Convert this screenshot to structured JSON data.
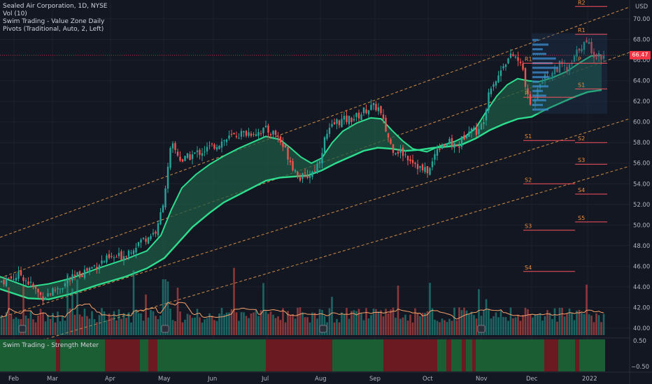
{
  "legend": {
    "title": "Sealed Air Corporation, 1D, NYSE",
    "vol": "Vol (10)",
    "indicator": "Swim Trading - Value Zone Daily",
    "pivots": "Pivots (Traditional, Auto, 2, Left)"
  },
  "sub_pane": {
    "label": "Swim Trading - Strength Meter",
    "ticks": [
      "0.50",
      "−0.50"
    ]
  },
  "axis": {
    "currency": "USD",
    "y_ticks": [
      "70.00",
      "68.00",
      "66.00",
      "64.00",
      "62.00",
      "60.00",
      "58.00",
      "56.00",
      "54.00",
      "52.00",
      "50.00",
      "48.00",
      "46.00",
      "44.00",
      "42.00",
      "40.00"
    ],
    "x_ticks": [
      "Feb",
      "Mar",
      "Apr",
      "May",
      "Jun",
      "Jul",
      "Aug",
      "Sep",
      "Oct",
      "Nov",
      "Dec",
      "2022"
    ]
  },
  "last_price": "66.47",
  "pivots_current": {
    "R2": "R2",
    "R1": "R1",
    "P": "P",
    "S1": "S1",
    "S2": "S2",
    "S3": "S3",
    "S4": "S4",
    "S5": "S5"
  },
  "pivots_prev": {
    "R1": "R1",
    "P": "P",
    "S1": "S1",
    "S2": "S2",
    "S3": "S3",
    "S4": "S4"
  },
  "colors": {
    "up": "#26a69a",
    "down": "#ef5350",
    "zone_line": "#2ede8f",
    "zone_fill": "#1e5a44",
    "channel": "#f0a04b",
    "pivot": "#f7525f",
    "pivot_text": "#f08c3a",
    "meter_green": "#1b5e33",
    "meter_red": "#6b1a22"
  },
  "chart_data": {
    "type": "candlestick",
    "ylim": [
      39,
      71
    ],
    "price_path": [
      [
        0,
        44.5
      ],
      [
        30,
        45.2
      ],
      [
        60,
        43
      ],
      [
        90,
        44.2
      ],
      [
        120,
        45.5
      ],
      [
        150,
        46.6
      ],
      [
        175,
        47
      ],
      [
        200,
        48.4
      ],
      [
        225,
        49.5
      ],
      [
        235,
        53
      ],
      [
        245,
        57.8
      ],
      [
        260,
        56.2
      ],
      [
        275,
        56.8
      ],
      [
        300,
        57.5
      ],
      [
        320,
        58.2
      ],
      [
        340,
        58.8
      ],
      [
        360,
        59
      ],
      [
        380,
        59.2
      ],
      [
        395,
        58.8
      ],
      [
        410,
        57
      ],
      [
        420,
        55.5
      ],
      [
        430,
        54.5
      ],
      [
        445,
        55
      ],
      [
        455,
        56
      ],
      [
        465,
        58.5
      ],
      [
        480,
        60
      ],
      [
        495,
        60.2
      ],
      [
        510,
        60.5
      ],
      [
        525,
        61.3
      ],
      [
        540,
        61.5
      ],
      [
        550,
        59.5
      ],
      [
        560,
        57.5
      ],
      [
        575,
        57
      ],
      [
        590,
        56.3
      ],
      [
        605,
        55.2
      ],
      [
        615,
        55.4
      ],
      [
        625,
        57.6
      ],
      [
        640,
        58
      ],
      [
        655,
        57.6
      ],
      [
        670,
        59.5
      ],
      [
        685,
        59
      ],
      [
        692,
        60.5
      ],
      [
        700,
        63.5
      ],
      [
        712,
        64.3
      ],
      [
        720,
        65.8
      ],
      [
        735,
        66.5
      ],
      [
        748,
        65
      ],
      [
        755,
        62
      ],
      [
        762,
        61.5
      ],
      [
        770,
        64
      ],
      [
        785,
        64.5
      ],
      [
        800,
        65.5
      ],
      [
        812,
        65
      ],
      [
        820,
        66
      ],
      [
        830,
        67.5
      ],
      [
        842,
        67.5
      ],
      [
        850,
        66.5
      ],
      [
        860,
        66.4
      ]
    ],
    "value_zone_fast": [
      [
        0,
        45
      ],
      [
        40,
        44
      ],
      [
        70,
        44.3
      ],
      [
        100,
        44.8
      ],
      [
        140,
        45.8
      ],
      [
        180,
        46.7
      ],
      [
        210,
        47.5
      ],
      [
        230,
        49
      ],
      [
        245,
        51.5
      ],
      [
        260,
        53.6
      ],
      [
        280,
        54.9
      ],
      [
        300,
        55.9
      ],
      [
        320,
        56.7
      ],
      [
        340,
        57.4
      ],
      [
        360,
        58
      ],
      [
        380,
        58.6
      ],
      [
        400,
        58.3
      ],
      [
        415,
        57.5
      ],
      [
        430,
        56.6
      ],
      [
        445,
        56
      ],
      [
        460,
        56.5
      ],
      [
        475,
        58
      ],
      [
        490,
        59.1
      ],
      [
        510,
        59.9
      ],
      [
        530,
        60.4
      ],
      [
        545,
        60.3
      ],
      [
        560,
        59.2
      ],
      [
        575,
        58.2
      ],
      [
        590,
        57.4
      ],
      [
        610,
        57.1
      ],
      [
        630,
        57.7
      ],
      [
        650,
        58.1
      ],
      [
        665,
        58.6
      ],
      [
        680,
        59.4
      ],
      [
        695,
        61
      ],
      [
        710,
        62.5
      ],
      [
        725,
        63.6
      ],
      [
        740,
        64.2
      ],
      [
        755,
        64
      ],
      [
        770,
        63.9
      ],
      [
        790,
        64.3
      ],
      [
        810,
        64.9
      ],
      [
        830,
        65.8
      ],
      [
        845,
        66.4
      ],
      [
        860,
        66.5
      ]
    ],
    "value_zone_slow": [
      [
        0,
        43.8
      ],
      [
        40,
        42.9
      ],
      [
        70,
        42.8
      ],
      [
        100,
        43.3
      ],
      [
        140,
        44.2
      ],
      [
        180,
        45
      ],
      [
        210,
        45.8
      ],
      [
        235,
        46.8
      ],
      [
        255,
        48.3
      ],
      [
        275,
        49.8
      ],
      [
        300,
        51.2
      ],
      [
        320,
        52.2
      ],
      [
        340,
        52.9
      ],
      [
        360,
        53.6
      ],
      [
        380,
        54.3
      ],
      [
        400,
        54.6
      ],
      [
        420,
        54.7
      ],
      [
        440,
        54.8
      ],
      [
        460,
        55.3
      ],
      [
        480,
        56
      ],
      [
        500,
        56.6
      ],
      [
        520,
        57.2
      ],
      [
        540,
        57.5
      ],
      [
        560,
        57.4
      ],
      [
        580,
        57.2
      ],
      [
        600,
        57.3
      ],
      [
        620,
        57.5
      ],
      [
        640,
        57.6
      ],
      [
        660,
        57.8
      ],
      [
        680,
        58.4
      ],
      [
        700,
        59.2
      ],
      [
        720,
        59.8
      ],
      [
        740,
        60.3
      ],
      [
        760,
        60.5
      ],
      [
        780,
        61.2
      ],
      [
        800,
        61.8
      ],
      [
        820,
        62.4
      ],
      [
        840,
        62.9
      ],
      [
        860,
        63.1
      ]
    ],
    "pivot_levels_current": {
      "R2": 71.2,
      "R1": 68.5,
      "P": 65.7,
      "S1": 63.2,
      "S2": 58,
      "S3": 55.9,
      "S4": 53,
      "S5": 50.3
    },
    "pivot_levels_prev": {
      "R1": 65.7,
      "P": 62.4,
      "S1": 58.2,
      "S2": 54,
      "S3": 49.5,
      "S4": 45.5
    },
    "strength_meter": [
      {
        "from": 0,
        "to": 80,
        "state": "green"
      },
      {
        "from": 80,
        "to": 86,
        "state": "red"
      },
      {
        "from": 86,
        "to": 150,
        "state": "green"
      },
      {
        "from": 150,
        "to": 200,
        "state": "red"
      },
      {
        "from": 200,
        "to": 212,
        "state": "green"
      },
      {
        "from": 212,
        "to": 225,
        "state": "red"
      },
      {
        "from": 225,
        "to": 380,
        "state": "green"
      },
      {
        "from": 380,
        "to": 475,
        "state": "red"
      },
      {
        "from": 475,
        "to": 548,
        "state": "green"
      },
      {
        "from": 548,
        "to": 625,
        "state": "red"
      },
      {
        "from": 625,
        "to": 638,
        "state": "green"
      },
      {
        "from": 638,
        "to": 645,
        "state": "red"
      },
      {
        "from": 645,
        "to": 660,
        "state": "green"
      },
      {
        "from": 660,
        "to": 666,
        "state": "red"
      },
      {
        "from": 666,
        "to": 675,
        "state": "green"
      },
      {
        "from": 675,
        "to": 680,
        "state": "red"
      },
      {
        "from": 680,
        "to": 778,
        "state": "green"
      },
      {
        "from": 778,
        "to": 798,
        "state": "red"
      },
      {
        "from": 798,
        "to": 822,
        "state": "green"
      },
      {
        "from": 822,
        "to": 828,
        "state": "red"
      },
      {
        "from": 828,
        "to": 865,
        "state": "green"
      }
    ]
  }
}
